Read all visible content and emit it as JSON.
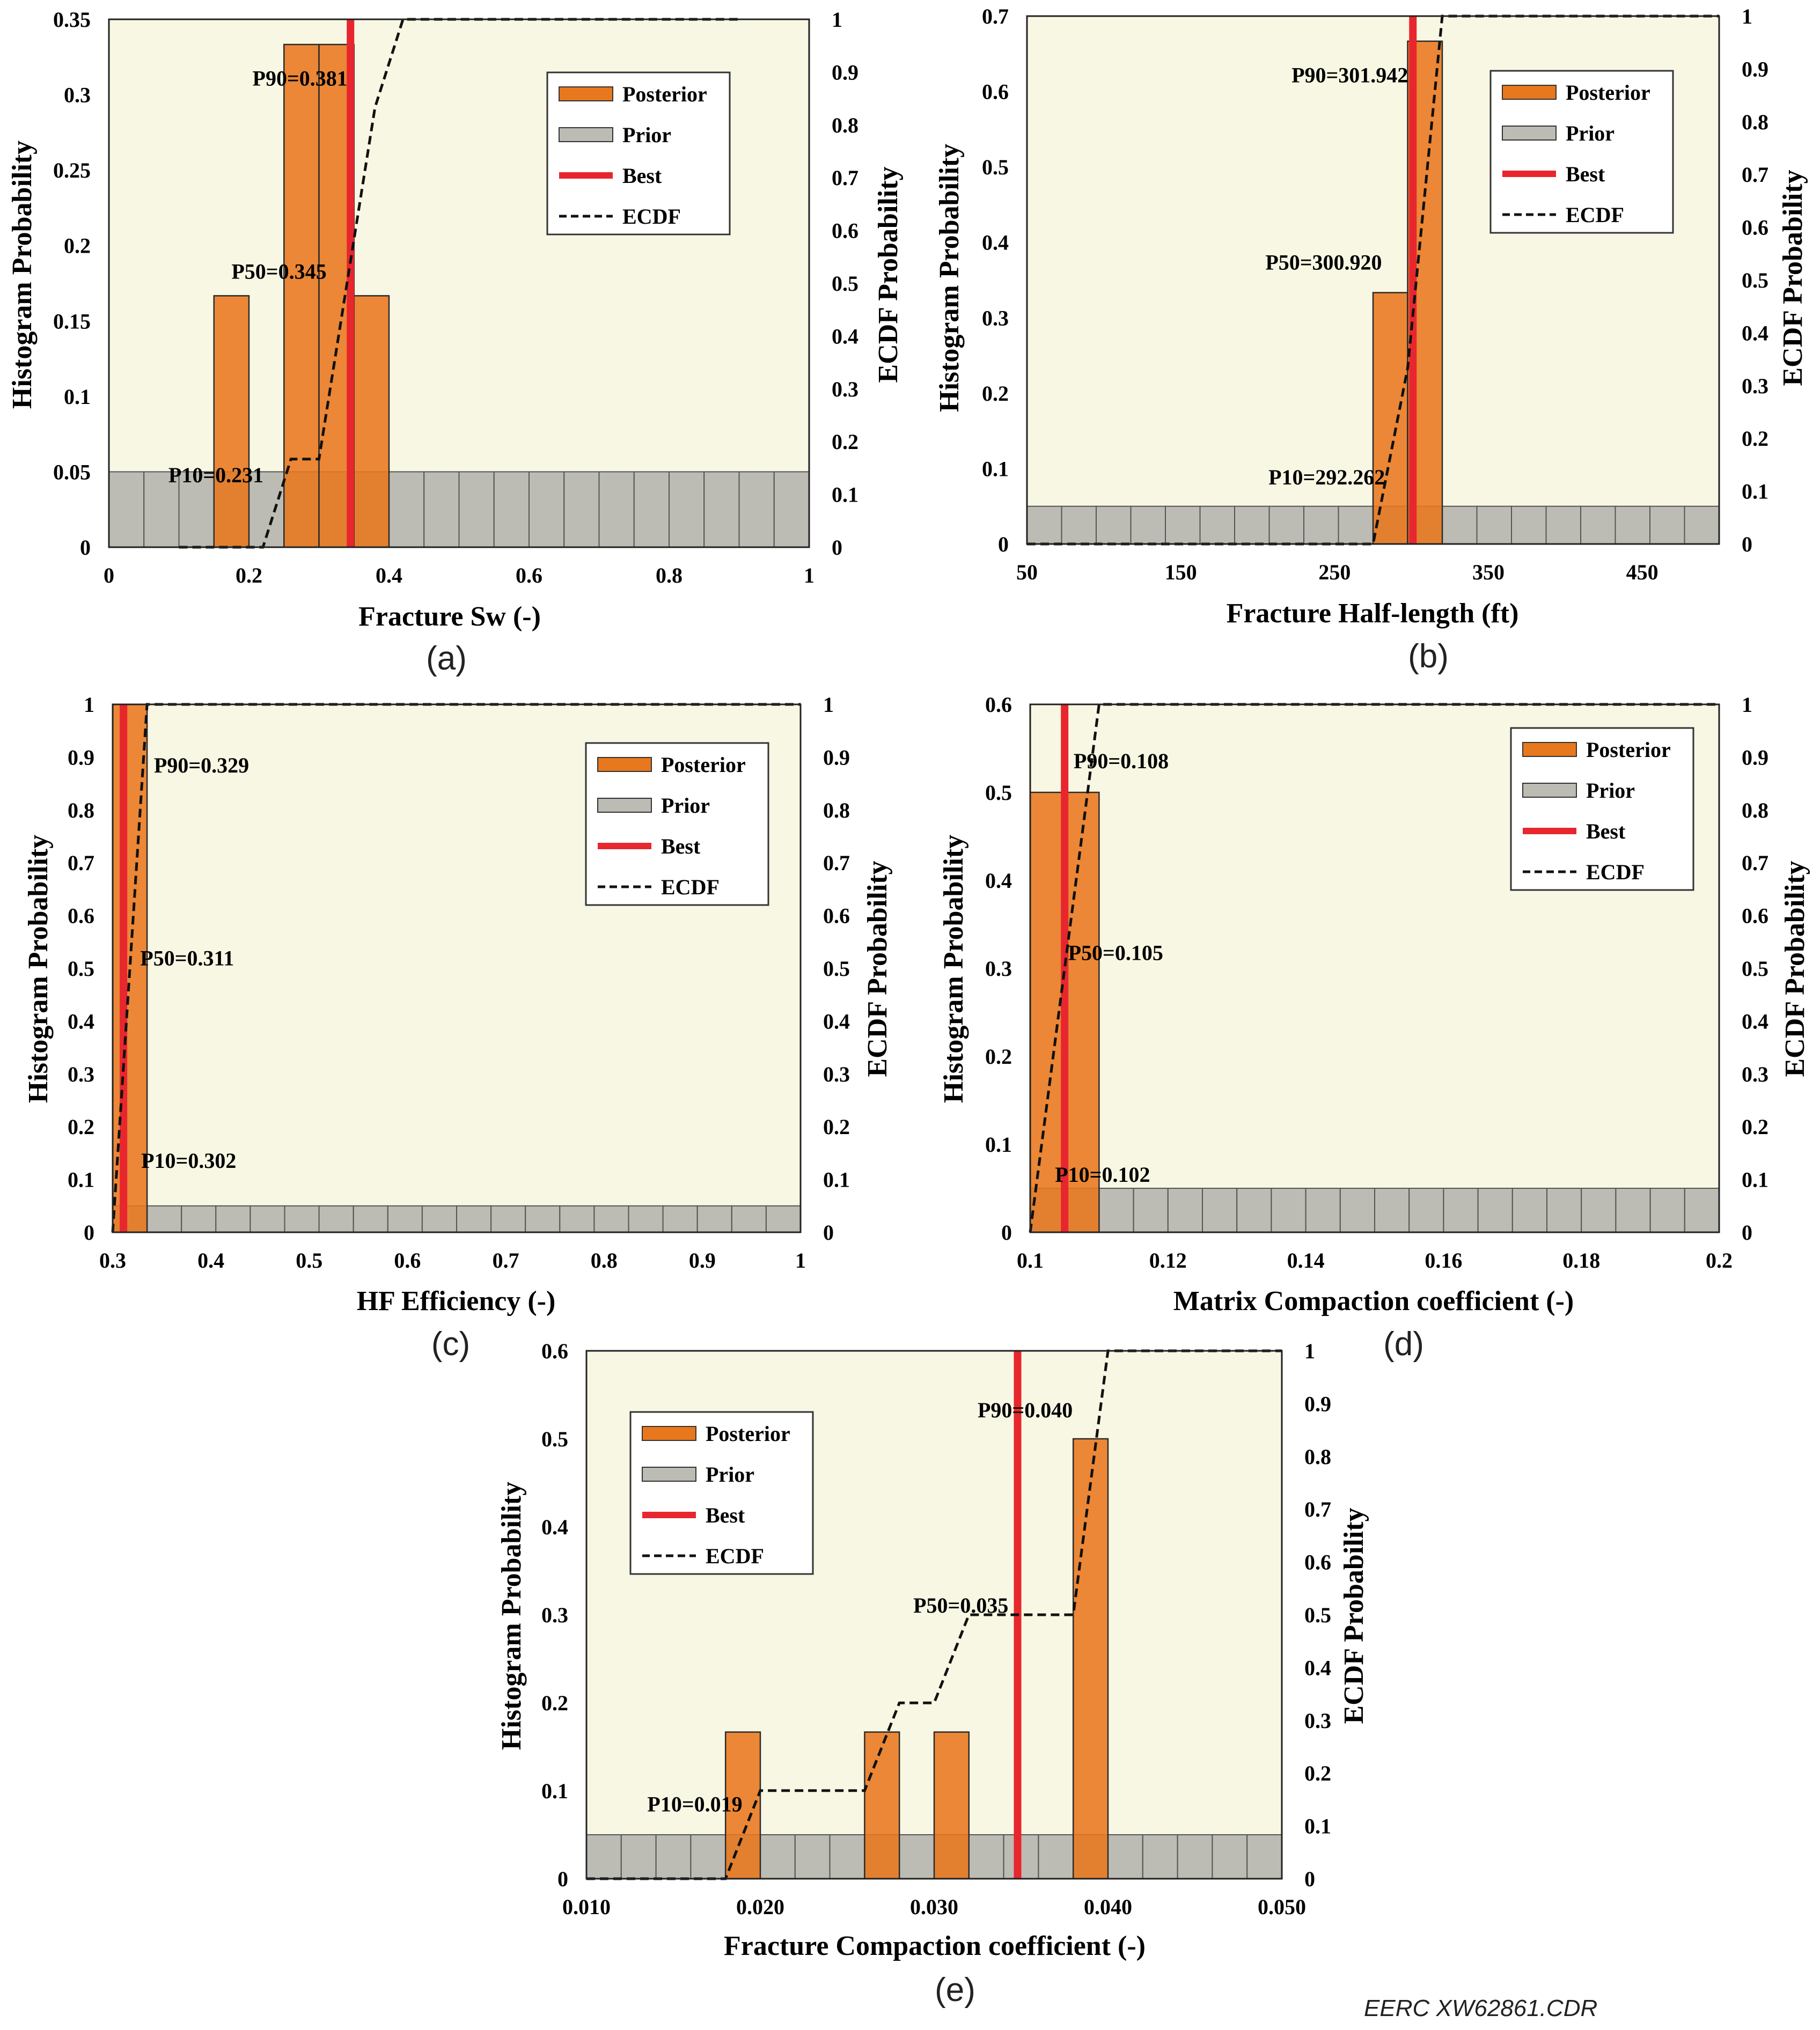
{
  "credit": "EERC XW62861.CDR",
  "legend_labels": {
    "posterior": "Posterior",
    "prior": "Prior",
    "best": "Best",
    "ecdf": "ECDF"
  },
  "colors": {
    "plot_bg": "#f8f7e3",
    "posterior": "#e8781e",
    "posterior_stroke": "#2b2b2b",
    "prior": "#bcbcb4",
    "best": "#e8262e",
    "ecdf": "#111111"
  },
  "chart_data": [
    {
      "panel": "(a)",
      "type": "bar",
      "xlabel": "Fracture Sw (-)",
      "ylabel": "Histogram Probability",
      "y2label": "ECDF Probability",
      "xlim": [
        0,
        1
      ],
      "ylim": [
        0,
        0.35
      ],
      "y2lim": [
        0,
        1
      ],
      "xticks": [
        "0",
        "0.2",
        "0.4",
        "0.6",
        "0.8",
        "1"
      ],
      "yticks": [
        "0",
        "0.05",
        "0.1",
        "0.15",
        "0.2",
        "0.25",
        "0.3",
        "0.35"
      ],
      "y2ticks": [
        "0",
        "0.1",
        "0.2",
        "0.3",
        "0.4",
        "0.5",
        "0.6",
        "0.7",
        "0.8",
        "0.9",
        "1"
      ],
      "prior": {
        "start": 0,
        "width": 0.05,
        "count": 20,
        "value": 0.05
      },
      "posterior": [
        {
          "x0": 0.15,
          "x1": 0.2,
          "value": 0.1667
        },
        {
          "x0": 0.25,
          "x1": 0.3,
          "value": 0.3333
        },
        {
          "x0": 0.3,
          "x1": 0.35,
          "value": 0.3333
        },
        {
          "x0": 0.35,
          "x1": 0.4,
          "value": 0.1667
        }
      ],
      "best": 0.345,
      "ecdf": [
        [
          0.1,
          0
        ],
        [
          0.22,
          0
        ],
        [
          0.26,
          0.167
        ],
        [
          0.3,
          0.167
        ],
        [
          0.38,
          0.833
        ],
        [
          0.42,
          1.0
        ],
        [
          0.9,
          1.0
        ]
      ],
      "percentiles": [
        {
          "label": "P90=0.381",
          "x": 0.205,
          "y": 0.311
        },
        {
          "label": "P50=0.345",
          "x": 0.175,
          "y": 0.183
        },
        {
          "label": "P10=0.231",
          "x": 0.085,
          "y": 0.048
        }
      ],
      "legend": "top-right",
      "legend_pos": "top-right"
    },
    {
      "panel": "(b)",
      "type": "bar",
      "xlabel": "Fracture Half-length (ft)",
      "ylabel": "Histogram Probability",
      "y2label": "ECDF Probability",
      "xlim": [
        50,
        500
      ],
      "ylim": [
        0,
        0.7
      ],
      "y2lim": [
        0,
        1
      ],
      "xticks": [
        "50",
        "150",
        "250",
        "350",
        "450"
      ],
      "xtick_values": [
        50,
        150,
        250,
        350,
        450
      ],
      "yticks": [
        "0",
        "0.1",
        "0.2",
        "0.3",
        "0.4",
        "0.5",
        "0.6",
        "0.7"
      ],
      "y2ticks": [
        "0",
        "0.1",
        "0.2",
        "0.3",
        "0.4",
        "0.5",
        "0.6",
        "0.7",
        "0.8",
        "0.9",
        "1"
      ],
      "prior": {
        "start": 50,
        "width": 22.5,
        "count": 20,
        "value": 0.05
      },
      "posterior": [
        {
          "x0": 275,
          "x1": 297.5,
          "value": 0.3333
        },
        {
          "x0": 297.5,
          "x1": 320,
          "value": 0.6667
        }
      ],
      "best": 300.9,
      "ecdf": [
        [
          50,
          0
        ],
        [
          275,
          0
        ],
        [
          297.5,
          0.333
        ],
        [
          320,
          1.0
        ],
        [
          500,
          1.0
        ]
      ],
      "percentiles": [
        {
          "label": "P90=301.942",
          "x": 222,
          "y": 0.622
        },
        {
          "label": "P50=300.920",
          "x": 205,
          "y": 0.374
        },
        {
          "label": "P10=292.262",
          "x": 207,
          "y": 0.089
        }
      ],
      "legend": "top-right",
      "legend_pos": "top-right"
    },
    {
      "panel": "(c)",
      "type": "bar",
      "xlabel": "HF Efficiency (-)",
      "ylabel": "Histogram Probability",
      "y2label": "ECDF Probability",
      "xlim": [
        0.3,
        1
      ],
      "ylim": [
        0,
        1
      ],
      "y2lim": [
        0,
        1
      ],
      "xticks": [
        "0.3",
        "0.4",
        "0.5",
        "0.6",
        "0.7",
        "0.8",
        "0.9",
        "1"
      ],
      "yticks": [
        "0",
        "0.1",
        "0.2",
        "0.3",
        "0.4",
        "0.5",
        "0.6",
        "0.7",
        "0.8",
        "0.9",
        "1"
      ],
      "y2ticks": [
        "0",
        "0.1",
        "0.2",
        "0.3",
        "0.4",
        "0.5",
        "0.6",
        "0.7",
        "0.8",
        "0.9",
        "1"
      ],
      "prior": {
        "start": 0.3,
        "width": 0.035,
        "count": 20,
        "value": 0.05
      },
      "posterior": [
        {
          "x0": 0.3,
          "x1": 0.335,
          "value": 1.0
        }
      ],
      "best": 0.311,
      "ecdf": [
        [
          0.3,
          0
        ],
        [
          0.335,
          1.0
        ],
        [
          1.0,
          1.0
        ]
      ],
      "percentiles": [
        {
          "label": "P90=0.329",
          "x": 0.342,
          "y": 0.885
        },
        {
          "label": "P50=0.311",
          "x": 0.328,
          "y": 0.52
        },
        {
          "label": "P10=0.302",
          "x": 0.329,
          "y": 0.136
        }
      ],
      "legend": "top-right",
      "legend_pos": "top-right"
    },
    {
      "panel": "(d)",
      "type": "bar",
      "xlabel": "Matrix Compaction coefficient (-)",
      "ylabel": "Histogram Probability",
      "y2label": "ECDF Probability",
      "xlim": [
        0.1,
        0.2
      ],
      "ylim": [
        0,
        0.6
      ],
      "y2lim": [
        0,
        1
      ],
      "xticks": [
        "0.1",
        "0.12",
        "0.14",
        "0.16",
        "0.18",
        "0.2"
      ],
      "yticks": [
        "0",
        "0.1",
        "0.2",
        "0.3",
        "0.4",
        "0.5",
        "0.6"
      ],
      "y2ticks": [
        "0",
        "0.1",
        "0.2",
        "0.3",
        "0.4",
        "0.5",
        "0.6",
        "0.7",
        "0.8",
        "0.9",
        "1"
      ],
      "prior": {
        "start": 0.1,
        "width": 0.005,
        "count": 20,
        "value": 0.05
      },
      "posterior": [
        {
          "x0": 0.1,
          "x1": 0.11,
          "value": 0.5
        }
      ],
      "best": 0.105,
      "ecdf": [
        [
          0.1,
          0
        ],
        [
          0.11,
          1.0
        ],
        [
          0.2,
          1.0
        ]
      ],
      "percentiles": [
        {
          "label": "P90=0.108",
          "x": 0.1063,
          "y": 0.536
        },
        {
          "label": "P50=0.105",
          "x": 0.1055,
          "y": 0.318
        },
        {
          "label": "P10=0.102",
          "x": 0.1036,
          "y": 0.066
        }
      ],
      "legend": "top-right",
      "legend_pos": "top-right"
    },
    {
      "panel": "(e)",
      "type": "bar",
      "xlabel": "Fracture Compaction coefficient (-)",
      "ylabel": "Histogram Probability",
      "y2label": "ECDF Probability",
      "xlim": [
        0.01,
        0.05
      ],
      "ylim": [
        0,
        0.6
      ],
      "y2lim": [
        0,
        1
      ],
      "xticks": [
        "0.010",
        "0.020",
        "0.030",
        "0.040",
        "0.050"
      ],
      "yticks": [
        "0",
        "0.1",
        "0.2",
        "0.3",
        "0.4",
        "0.5",
        "0.6"
      ],
      "y2ticks": [
        "0",
        "0.1",
        "0.2",
        "0.3",
        "0.4",
        "0.5",
        "0.6",
        "0.7",
        "0.8",
        "0.9",
        "1"
      ],
      "prior": {
        "start": 0.01,
        "width": 0.002,
        "count": 20,
        "value": 0.05
      },
      "posterior": [
        {
          "x0": 0.018,
          "x1": 0.02,
          "value": 0.1667
        },
        {
          "x0": 0.026,
          "x1": 0.028,
          "value": 0.1667
        },
        {
          "x0": 0.03,
          "x1": 0.032,
          "value": 0.1667
        },
        {
          "x0": 0.038,
          "x1": 0.04,
          "value": 0.5
        }
      ],
      "best": 0.0348,
      "ecdf": [
        [
          0.01,
          0
        ],
        [
          0.018,
          0
        ],
        [
          0.02,
          0.167
        ],
        [
          0.026,
          0.167
        ],
        [
          0.028,
          0.333
        ],
        [
          0.03,
          0.333
        ],
        [
          0.032,
          0.5
        ],
        [
          0.038,
          0.5
        ],
        [
          0.04,
          1.0
        ],
        [
          0.05,
          1.0
        ]
      ],
      "percentiles": [
        {
          "label": "P90=0.040",
          "x": 0.0325,
          "y": 0.533
        },
        {
          "label": "P50=0.035",
          "x": 0.0288,
          "y": 0.311
        },
        {
          "label": "P10=0.019",
          "x": 0.0135,
          "y": 0.085
        }
      ],
      "legend": "top-left",
      "legend_pos": "top-left"
    }
  ]
}
